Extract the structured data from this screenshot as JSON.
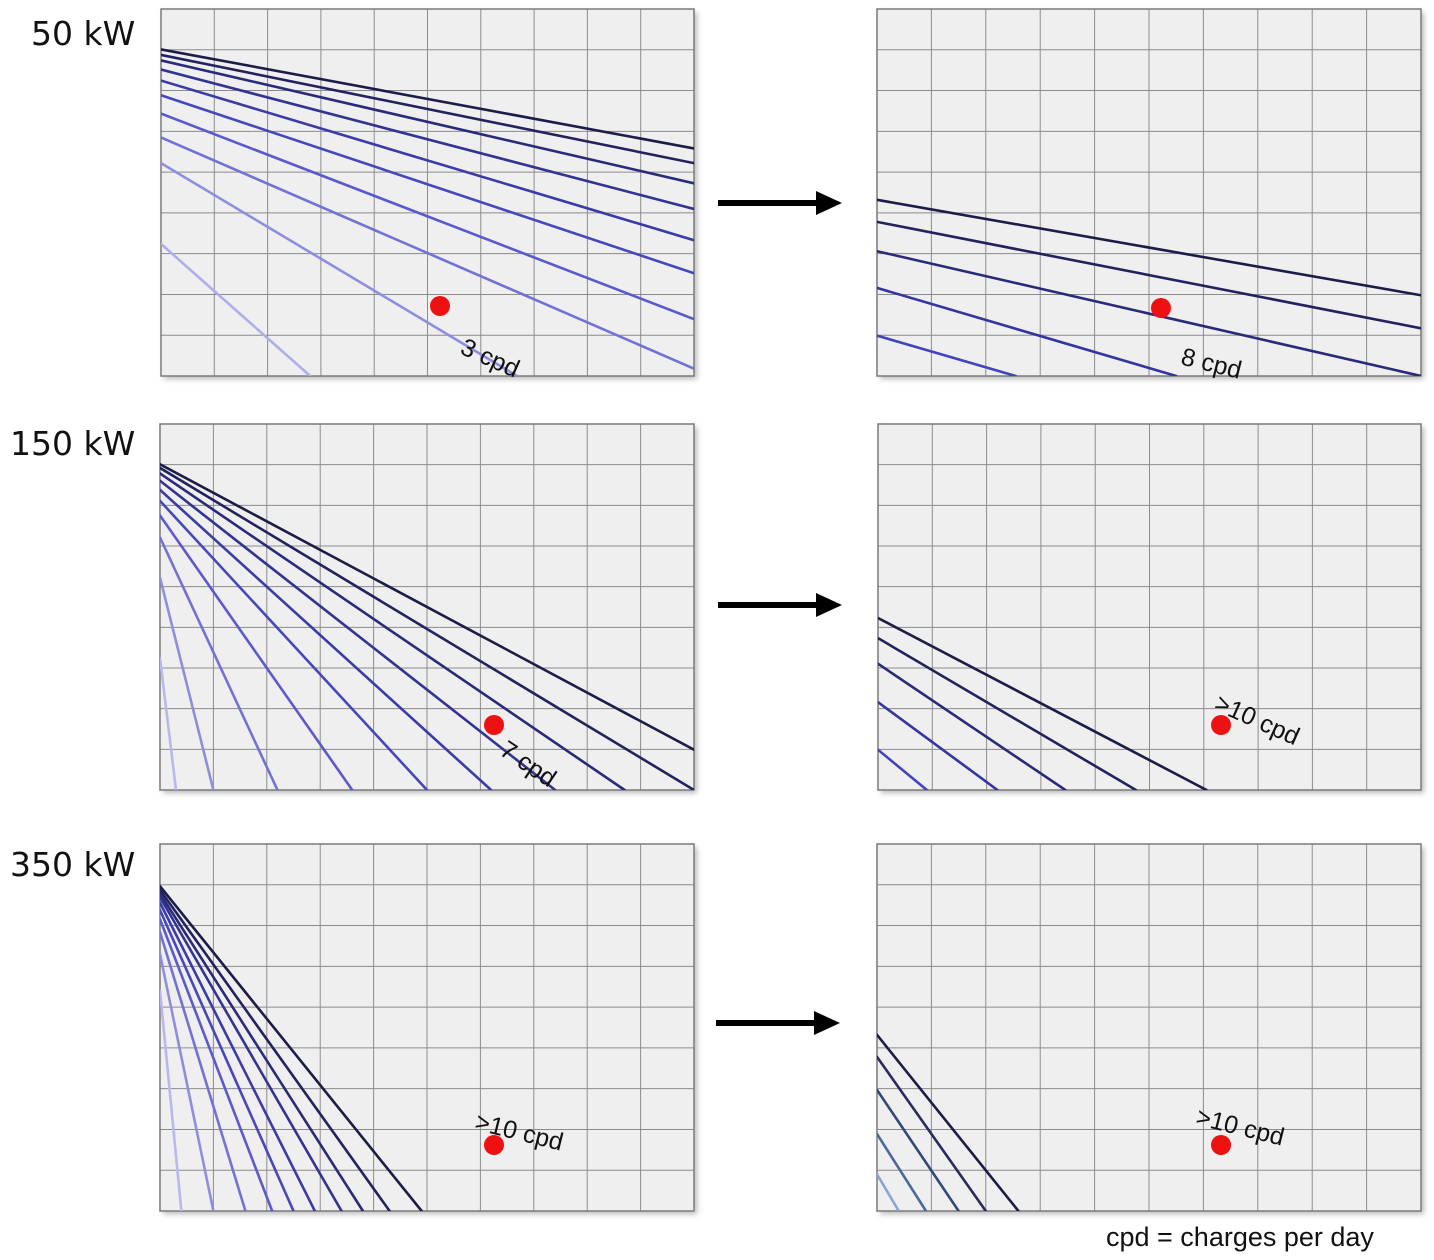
{
  "chart_data": [
    {
      "type": "line",
      "row_label": "50 kW",
      "stage": "before",
      "marker_label": "3 cpd",
      "line_count": 10,
      "line_colors": [
        "#1c1c48",
        "#22225e",
        "#2a2a7a",
        "#333392",
        "#3b3ba8",
        "#4747bc",
        "#5a5acc",
        "#7272d6",
        "#8e8ee0",
        "#aeaeea"
      ]
    },
    {
      "type": "line",
      "row_label": "50 kW",
      "stage": "after",
      "marker_label": "8 cpd",
      "line_count": 5,
      "line_colors": [
        "#1c1c48",
        "#22225e",
        "#2a2a7a",
        "#3535a0",
        "#4343bc"
      ]
    },
    {
      "type": "line",
      "row_label": "150 kW",
      "stage": "before",
      "marker_label": "7 cpd",
      "line_count": 10,
      "line_colors": [
        "#1c1c48",
        "#22225e",
        "#2a2a7a",
        "#333392",
        "#3b3ba8",
        "#4747bc",
        "#5a5acc",
        "#7272d6",
        "#8e8ee0",
        "#b8b8ee"
      ]
    },
    {
      "type": "line",
      "row_label": "150 kW",
      "stage": "after",
      "marker_label": ">10 cpd",
      "line_count": 5,
      "line_colors": [
        "#1c1c48",
        "#22225e",
        "#2a2a7a",
        "#3535a0",
        "#4343bc"
      ]
    },
    {
      "type": "line",
      "row_label": "350 kW",
      "stage": "before",
      "marker_label": ">10 cpd",
      "line_count": 10,
      "line_colors": [
        "#1c1c48",
        "#22225e",
        "#2a2a7a",
        "#333392",
        "#3b3ba8",
        "#4747bc",
        "#5a5acc",
        "#7272d6",
        "#8e8ee0",
        "#b8b8ee"
      ]
    },
    {
      "type": "line",
      "row_label": "350 kW",
      "stage": "after",
      "marker_label": ">10 cpd",
      "line_count": 5,
      "line_colors": [
        "#1c1c48",
        "#2a2a60",
        "#34497a",
        "#4a6a9a",
        "#8aa6d0"
      ]
    }
  ],
  "rows": [
    {
      "label": "50 kW"
    },
    {
      "label": "150 kW"
    },
    {
      "label": "350 kW"
    }
  ],
  "footnote": "cpd = charges per day",
  "colors": {
    "panel_bg": "#efefef",
    "grid": "#8c8c8c",
    "marker": "#ee1111",
    "arrow": "#000000"
  }
}
